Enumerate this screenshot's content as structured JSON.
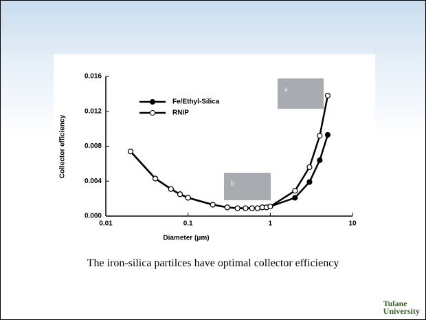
{
  "chart_data": {
    "type": "line",
    "x_label": "Diameter (μm)",
    "y_label": "Collector efficiency",
    "x": [
      0.02,
      0.04,
      0.062,
      0.08,
      0.1,
      0.2,
      0.3,
      0.4,
      0.5,
      0.6,
      0.7,
      0.8,
      0.9,
      1,
      2,
      3,
      4,
      5
    ],
    "series": [
      {
        "name": "Fe/Ethyl-Silica",
        "color": "#000000",
        "marker": "filled",
        "values": [
          0.0074,
          0.0043,
          0.0031,
          0.0025,
          0.0021,
          0.0013,
          0.001,
          0.0009,
          0.0009,
          0.0009,
          0.0009,
          0.001,
          0.001,
          0.0011,
          0.0021,
          0.0039,
          0.0064,
          0.0093
        ]
      },
      {
        "name": "RNIP",
        "color": "#000000",
        "marker": "open",
        "values": [
          0.0074,
          0.0043,
          0.0031,
          0.0025,
          0.0021,
          0.0013,
          0.001,
          0.0009,
          0.0009,
          0.0009,
          0.0009,
          0.001,
          0.001,
          0.0011,
          0.0029,
          0.0056,
          0.0092,
          0.0138
        ]
      }
    ],
    "xscale": "log",
    "xlim": [
      0.01,
      10
    ],
    "xticks": [
      0.01,
      0.1,
      1,
      10
    ],
    "ylim": [
      0,
      0.016
    ],
    "yticks": [
      {
        "value": 0,
        "label": "0.000"
      },
      0.004,
      0.008,
      0.012,
      0.016
    ],
    "legend": "upper-left",
    "insets": [
      "a",
      "b"
    ]
  },
  "caption": "The iron-silica partilces have optimal collector efficiency",
  "logo": [
    "Tulane",
    "University"
  ]
}
